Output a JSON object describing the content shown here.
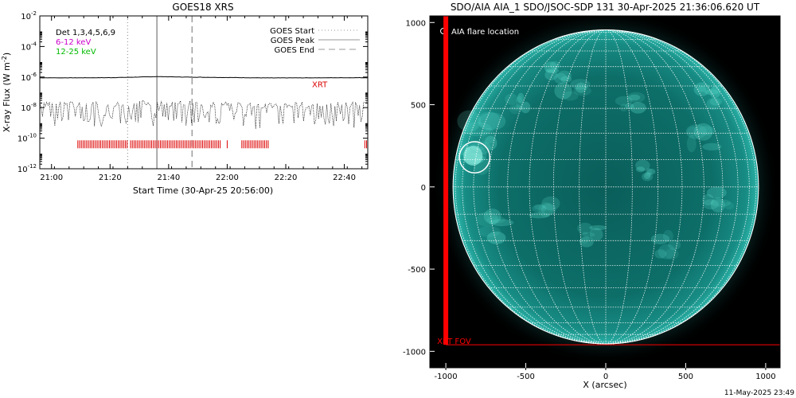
{
  "chart_data": [
    {
      "type": "line",
      "title": "GOES18 XRS",
      "xlabel": "Start Time (30-Apr-25 20:56:00)",
      "ylabel": "X-ray Flux (W m",
      "ylabel_sup": "-2",
      "ylabel_close": ")",
      "y_scale": "log",
      "ylim_exp": [
        -12,
        -2
      ],
      "ytick_exponents": [
        -12,
        -10,
        -8,
        -6,
        -4,
        -2
      ],
      "ytick_base": "10",
      "xlim": [
        "20:56",
        "22:48"
      ],
      "xtick_labels": [
        "21:00",
        "21:20",
        "21:40",
        "22:00",
        "22:20",
        "22:40"
      ],
      "legend_left": [
        {
          "text": "Det 1,3,4,5,6,9",
          "color": "#000000"
        },
        {
          "text": "6-12 keV",
          "color": "#cc00cc"
        },
        {
          "text": "12-25 keV",
          "color": "#00bb00"
        }
      ],
      "legend_right": [
        {
          "text": "GOES Start",
          "style": "dotted",
          "color": "#999999"
        },
        {
          "text": "GOES Peak",
          "style": "solid",
          "color": "#999999"
        },
        {
          "text": "GOES End",
          "style": "dashed",
          "color": "#999999"
        }
      ],
      "markers": {
        "goes_start": "21:26",
        "goes_peak": "21:36",
        "goes_end": "21:48"
      },
      "series": [
        {
          "name": "",
          "color": "#000000",
          "x": [
            "20:56",
            "21:10",
            "21:20",
            "21:30",
            "21:36",
            "21:45",
            "22:00",
            "22:15",
            "22:30",
            "22:48"
          ],
          "y_exp": [
            -6.05,
            -6.05,
            -6.04,
            -6.0,
            -5.97,
            -6.0,
            -6.03,
            -6.06,
            -6.05,
            -6.04
          ]
        },
        {
          "name": "",
          "color": "#000000",
          "x": [
            "20:56",
            "21:10",
            "21:20",
            "21:30",
            "21:36",
            "21:45",
            "22:00",
            "22:15",
            "22:30",
            "22:48"
          ],
          "y_exp": [
            -7.8,
            -7.8,
            -7.85,
            -7.7,
            -7.7,
            -7.75,
            -7.8,
            -7.85,
            -7.8,
            -7.8
          ]
        }
      ],
      "annotation": {
        "text": "XRT",
        "color": "#dd0000"
      },
      "xrt_obs_bars": [
        {
          "from": "21:09",
          "to": "21:26"
        },
        {
          "from": "21:27",
          "to": "21:58"
        },
        {
          "from": "22:00",
          "to": "22:00"
        },
        {
          "from": "22:05",
          "to": "22:14"
        },
        {
          "from": "22:47",
          "to": "22:48"
        }
      ],
      "xrt_obs_color": "#dd0000"
    },
    {
      "type": "image",
      "title": "SDO/AIA AIA_1 SDO/JSOC-SDP 131 30-Apr-2025 21:36:06.620 UT",
      "xlabel": "X (arcsec)",
      "ylabel": "",
      "xlim": [
        -1100,
        1090
      ],
      "ylim": [
        -1100,
        1040
      ],
      "xtick_labels": [
        "-1000",
        "-500",
        "0",
        "500",
        "1000"
      ],
      "ytick_labels": [
        "-1000",
        "-500",
        "0",
        "500",
        "1000"
      ],
      "xticks": [
        -1000,
        -500,
        0,
        500,
        1000
      ],
      "yticks": [
        -1000,
        -500,
        0,
        500,
        1000
      ],
      "legend": "AIA flare location",
      "flare_location": {
        "x": -820,
        "y": 180
      },
      "fov_label": "XRT FOV",
      "fov": {
        "x_min": -1000,
        "y_min": -960
      },
      "solar_radius": 955,
      "colors": {
        "disk": "#0c6f6a",
        "bright": "#5fe0d0",
        "grid": "#ffffff",
        "fov": "#ff0000"
      }
    }
  ],
  "footer": {
    "timestamp": "11-May-2025 23:49"
  }
}
